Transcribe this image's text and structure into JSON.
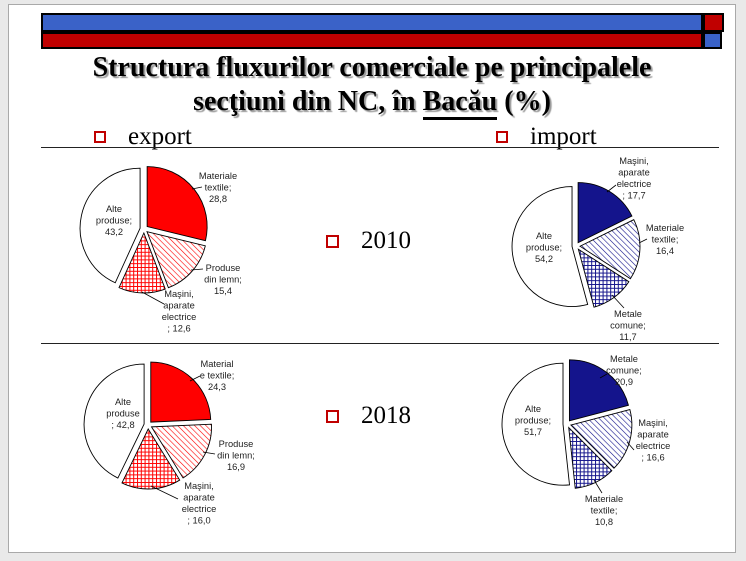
{
  "title": {
    "line1": "Structura fluxurilor comerciale pe principalele",
    "line2_pre": "secţiuni din NC, în ",
    "line2_place": "Bacău",
    "line2_post": " (%)"
  },
  "headers": {
    "export": "export",
    "import": "import"
  },
  "years": {
    "y2010": "2010",
    "y2018": "2018"
  },
  "colors": {
    "bar_blue": "#3A62C8",
    "bar_red": "#C00000",
    "bullet_red": "#C00000",
    "pie_red": "#FF0000",
    "pie_navy": "#14148C"
  },
  "chart_data": [
    {
      "type": "pie",
      "title": "export 2010",
      "accent": "#FF0000",
      "legend_position": "none",
      "slices": [
        {
          "name": "Materiale textile",
          "value": 28.8,
          "fill": "solid",
          "label_lines": [
            "Materiale",
            "textile;",
            "28,8"
          ]
        },
        {
          "name": "Produse din lemn",
          "value": 15.4,
          "fill": "diagonal",
          "label_lines": [
            "Produse",
            "din lemn;",
            "15,4"
          ]
        },
        {
          "name": "Maşini, aparate electrice",
          "value": 12.6,
          "fill": "grid",
          "label_lines": [
            "Maşini,",
            "aparate",
            "electrice",
            "; 12,6"
          ]
        },
        {
          "name": "Alte produse",
          "value": 43.2,
          "fill": "white",
          "label_lines": [
            "Alte",
            "produse;",
            "43,2"
          ]
        }
      ]
    },
    {
      "type": "pie",
      "title": "import 2010",
      "accent": "#14148C",
      "legend_position": "none",
      "slices": [
        {
          "name": "Maşini, aparate electrice",
          "value": 17.7,
          "fill": "solid",
          "label_lines": [
            "Maşini,",
            "aparate",
            "electrice",
            "; 17,7"
          ]
        },
        {
          "name": "Materiale textile",
          "value": 16.4,
          "fill": "diagonal",
          "label_lines": [
            "Materiale",
            "textile;",
            "16,4"
          ]
        },
        {
          "name": "Metale comune",
          "value": 11.7,
          "fill": "grid",
          "label_lines": [
            "Metale",
            "comune;",
            "11,7"
          ]
        },
        {
          "name": "Alte produse",
          "value": 54.2,
          "fill": "white",
          "label_lines": [
            "Alte",
            "produse;",
            "54,2"
          ]
        }
      ]
    },
    {
      "type": "pie",
      "title": "export 2018",
      "accent": "#FF0000",
      "legend_position": "none",
      "slices": [
        {
          "name": "Materiale textile",
          "value": 24.3,
          "fill": "solid",
          "label_lines": [
            "Material",
            "e textile;",
            "24,3"
          ]
        },
        {
          "name": "Produse din lemn",
          "value": 16.9,
          "fill": "diagonal",
          "label_lines": [
            "Produse",
            "din lemn;",
            "16,9"
          ]
        },
        {
          "name": "Maşini, aparate electrice",
          "value": 16.0,
          "fill": "grid",
          "label_lines": [
            "Maşini,",
            "aparate",
            "electrice",
            "; 16,0"
          ]
        },
        {
          "name": "Alte produse",
          "value": 42.8,
          "fill": "white",
          "label_lines": [
            "Alte",
            "produse",
            "; 42,8"
          ]
        }
      ]
    },
    {
      "type": "pie",
      "title": "import 2018",
      "accent": "#14148C",
      "legend_position": "none",
      "slices": [
        {
          "name": "Metale comune",
          "value": 20.9,
          "fill": "solid",
          "label_lines": [
            "Metale",
            "comune;",
            "20,9"
          ]
        },
        {
          "name": "Maşini, aparate electrice",
          "value": 16.6,
          "fill": "diagonal",
          "label_lines": [
            "Maşini,",
            "aparate",
            "electrice",
            "; 16,6"
          ]
        },
        {
          "name": "Materiale textile",
          "value": 10.8,
          "fill": "grid",
          "label_lines": [
            "Materiale",
            "textile;",
            "10,8"
          ]
        },
        {
          "name": "Alte produse",
          "value": 51.7,
          "fill": "white",
          "label_lines": [
            "Alte",
            "produse;",
            "51,7"
          ]
        }
      ]
    }
  ]
}
